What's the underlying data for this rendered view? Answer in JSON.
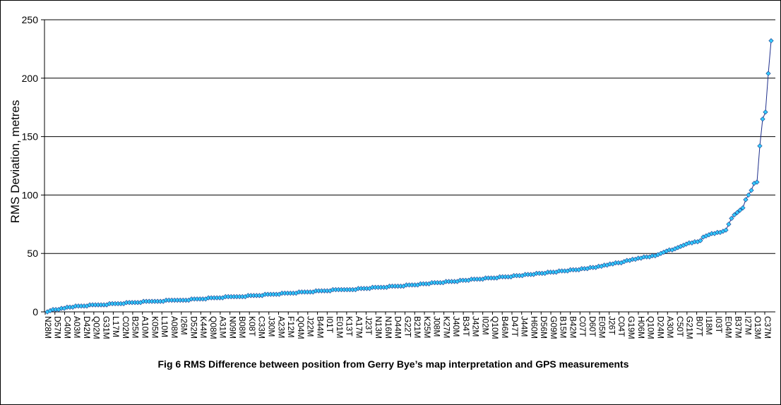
{
  "chart_data": {
    "type": "line",
    "title": "Fig 6   RMS Difference between position from Gerry Bye’s map interpretation and GPS measurements",
    "ylabel": "RMS Deviation, metres",
    "xlabel": "",
    "ylim": [
      0,
      250
    ],
    "yticks": [
      0,
      50,
      100,
      150,
      200,
      250
    ],
    "grid": "horizontal",
    "legend": "none",
    "colors": {
      "line": "#1f2f8c",
      "marker": "#33ccff",
      "marker_edge": "#1a3a8a",
      "grid": "#000000"
    },
    "point_count": 250,
    "x_labels": [
      "N28M",
      "D57M",
      "C40M",
      "A03M",
      "D42M",
      "Q02M",
      "G31M",
      "L17M",
      "C02M",
      "B25M",
      "A10M",
      "K05M",
      "L10M",
      "A08M",
      "I26M",
      "D52M",
      "K44M",
      "Q08M",
      "A31M",
      "N09M",
      "B08M",
      "K08T",
      "C33M",
      "J30M",
      "A23M",
      "F12M",
      "Q04M",
      "J22M",
      "B44M",
      "I01T",
      "E01M",
      "K13T",
      "A17M",
      "J23T",
      "N13M",
      "N16M",
      "D44M",
      "G22T",
      "B21M",
      "K25M",
      "J08M",
      "K27M",
      "J40M",
      "B34T",
      "J42M",
      "I02M",
      "Q10M",
      "B46M",
      "D47T",
      "J44M",
      "H60M",
      "D56M",
      "G09M",
      "B15M",
      "B42M",
      "C07T",
      "D60T",
      "E05M",
      "J26T",
      "C04T",
      "G19M",
      "H06M",
      "Q10M",
      "D24M",
      "A30M",
      "C50T",
      "G21M",
      "B07T",
      "I18M",
      "I03T",
      "E04M",
      "B37M",
      "I27M",
      "O13M",
      "C37M"
    ],
    "values": [
      0,
      1,
      2,
      2,
      2,
      3,
      3,
      4,
      4,
      4,
      5,
      5,
      5,
      5,
      5,
      6,
      6,
      6,
      6,
      6,
      6,
      6,
      7,
      7,
      7,
      7,
      7,
      7,
      8,
      8,
      8,
      8,
      8,
      8,
      9,
      9,
      9,
      9,
      9,
      9,
      9,
      9,
      10,
      10,
      10,
      10,
      10,
      10,
      10,
      10,
      10,
      11,
      11,
      11,
      11,
      11,
      11,
      12,
      12,
      12,
      12,
      12,
      12,
      13,
      13,
      13,
      13,
      13,
      13,
      13,
      13,
      14,
      14,
      14,
      14,
      14,
      14,
      15,
      15,
      15,
      15,
      15,
      15,
      16,
      16,
      16,
      16,
      16,
      16,
      17,
      17,
      17,
      17,
      17,
      17,
      18,
      18,
      18,
      18,
      18,
      18,
      19,
      19,
      19,
      19,
      19,
      19,
      19,
      19,
      19,
      20,
      20,
      20,
      20,
      20,
      21,
      21,
      21,
      21,
      21,
      21,
      22,
      22,
      22,
      22,
      22,
      22,
      23,
      23,
      23,
      23,
      23,
      24,
      24,
      24,
      24,
      25,
      25,
      25,
      25,
      25,
      26,
      26,
      26,
      26,
      26,
      27,
      27,
      27,
      27,
      28,
      28,
      28,
      28,
      28,
      29,
      29,
      29,
      29,
      29,
      30,
      30,
      30,
      30,
      30,
      31,
      31,
      31,
      31,
      32,
      32,
      32,
      32,
      33,
      33,
      33,
      33,
      34,
      34,
      34,
      34,
      35,
      35,
      35,
      35,
      36,
      36,
      36,
      36,
      37,
      37,
      37,
      38,
      38,
      38,
      39,
      39,
      40,
      40,
      41,
      41,
      42,
      42,
      42,
      43,
      44,
      44,
      45,
      45,
      46,
      46,
      47,
      47,
      47,
      48,
      48,
      49,
      50,
      51,
      52,
      53,
      53,
      54,
      55,
      56,
      57,
      58,
      59,
      59,
      60,
      60,
      61,
      64,
      65,
      66,
      67,
      67,
      68,
      68,
      69,
      70,
      75,
      80,
      83,
      85,
      87,
      89,
      96,
      100,
      104,
      110,
      111,
      142,
      165,
      171,
      204,
      232
    ]
  }
}
